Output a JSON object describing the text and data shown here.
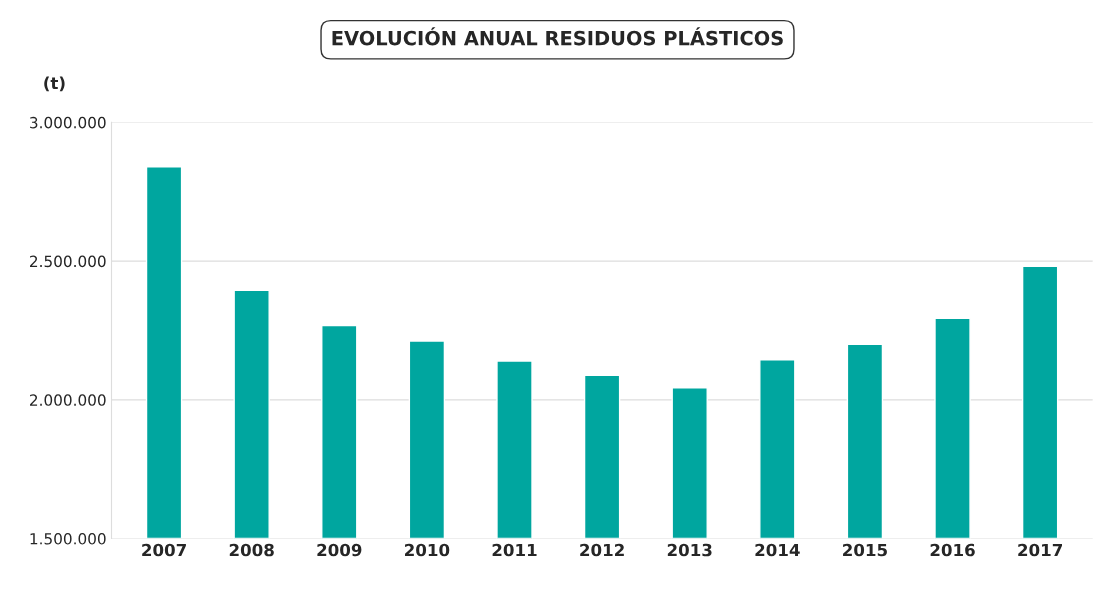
{
  "chart_data": {
    "type": "bar",
    "title": "EVOLUCIÓN ANUAL RESIDUOS PLÁSTICOS",
    "ylabel": "(t)",
    "categories": [
      "2007",
      "2008",
      "2009",
      "2010",
      "2011",
      "2012",
      "2013",
      "2014",
      "2015",
      "2016",
      "2017"
    ],
    "values": [
      2840000,
      2395000,
      2268000,
      2212000,
      2140000,
      2088000,
      2043000,
      2144000,
      2200000,
      2294000,
      2481000
    ],
    "color": "#00a69f",
    "ylim": [
      1500000,
      3000000
    ],
    "yticks": [
      {
        "value": 1500000,
        "label": "1.500.000"
      },
      {
        "value": 2000000,
        "label": "2.000.000"
      },
      {
        "value": 2500000,
        "label": "2.500.000"
      },
      {
        "value": 3000000,
        "label": "3.000.000"
      }
    ],
    "grid": "y"
  }
}
